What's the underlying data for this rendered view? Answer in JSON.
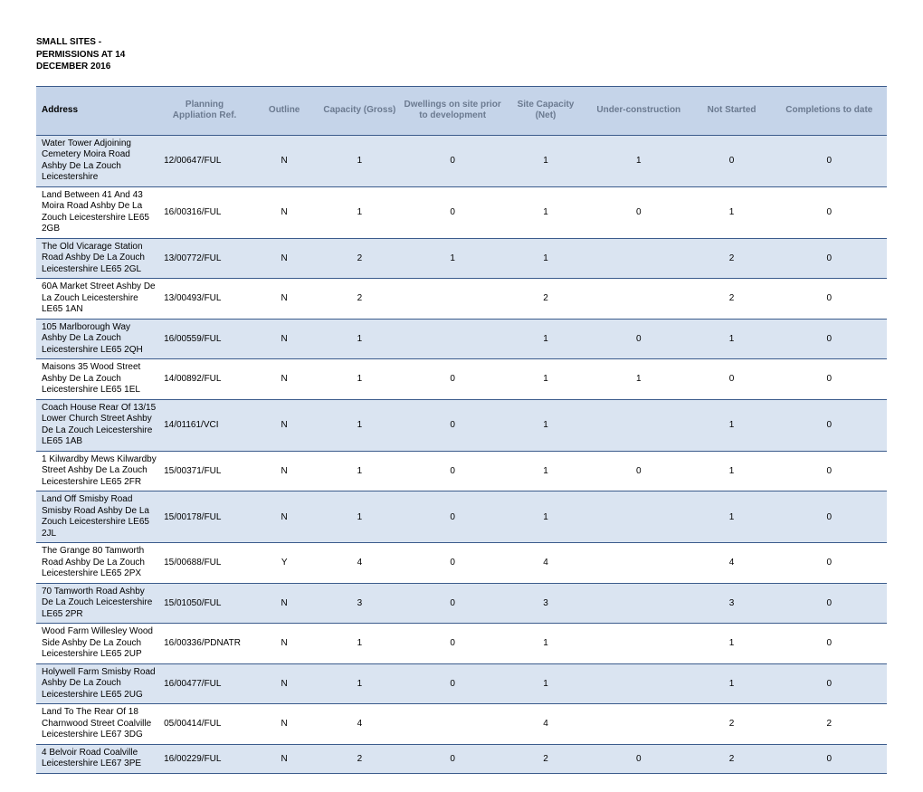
{
  "title_lines": [
    "SMALL SITES -",
    "PERMISSIONS AT 14",
    "DECEMBER 2016"
  ],
  "colors": {
    "header_bg": "#c5d4e9",
    "header_text": "#6b7a90",
    "row_odd_bg": "#dae4f1",
    "row_even_bg": "#ffffff",
    "border": "#3b5b8c"
  },
  "columns": [
    {
      "key": "address",
      "label": "Address"
    },
    {
      "key": "ref",
      "label": "Planning Appliation Ref."
    },
    {
      "key": "outline",
      "label": "Outline"
    },
    {
      "key": "gross",
      "label": "Capacity (Gross)"
    },
    {
      "key": "dwellings",
      "label": "Dwellings on site prior to development"
    },
    {
      "key": "net",
      "label": "Site Capacity (Net)"
    },
    {
      "key": "under",
      "label": "Under-construction"
    },
    {
      "key": "notstarted",
      "label": "Not Started"
    },
    {
      "key": "completions",
      "label": "Completions to date"
    }
  ],
  "rows": [
    {
      "address": "Water Tower Adjoining Cemetery Moira Road Ashby De La Zouch Leicestershire",
      "ref": "12/00647/FUL",
      "outline": "N",
      "gross": "1",
      "dwellings": "0",
      "net": "1",
      "under": "1",
      "notstarted": "0",
      "completions": "0"
    },
    {
      "address": "Land Between 41 And 43 Moira Road Ashby De La Zouch Leicestershire LE65 2GB",
      "ref": "16/00316/FUL",
      "outline": "N",
      "gross": "1",
      "dwellings": "0",
      "net": "1",
      "under": "0",
      "notstarted": "1",
      "completions": "0"
    },
    {
      "address": "The Old Vicarage Station Road Ashby De La Zouch Leicestershire LE65 2GL",
      "ref": "13/00772/FUL",
      "outline": "N",
      "gross": "2",
      "dwellings": "1",
      "net": "1",
      "under": "",
      "notstarted": "2",
      "completions": "0"
    },
    {
      "address": "60A Market Street Ashby De La Zouch Leicestershire LE65 1AN",
      "ref": "13/00493/FUL",
      "outline": "N",
      "gross": "2",
      "dwellings": "",
      "net": "2",
      "under": "",
      "notstarted": "2",
      "completions": "0"
    },
    {
      "address": "105 Marlborough Way Ashby De La Zouch Leicestershire LE65 2QH",
      "ref": "16/00559/FUL",
      "outline": "N",
      "gross": "1",
      "dwellings": "",
      "net": "1",
      "under": "0",
      "notstarted": "1",
      "completions": "0"
    },
    {
      "address": "Maisons 35 Wood Street Ashby De La Zouch Leicestershire LE65 1EL",
      "ref": "14/00892/FUL",
      "outline": "N",
      "gross": "1",
      "dwellings": "0",
      "net": "1",
      "under": "1",
      "notstarted": "0",
      "completions": "0"
    },
    {
      "address": "Coach House Rear Of 13/15 Lower Church Street Ashby De La Zouch Leicestershire LE65 1AB",
      "ref": "14/01161/VCI",
      "outline": "N",
      "gross": "1",
      "dwellings": "0",
      "net": "1",
      "under": "",
      "notstarted": "1",
      "completions": "0"
    },
    {
      "address": "1 Kilwardby Mews Kilwardby Street Ashby De La Zouch Leicestershire LE65 2FR",
      "ref": "15/00371/FUL",
      "outline": "N",
      "gross": "1",
      "dwellings": "0",
      "net": "1",
      "under": "0",
      "notstarted": "1",
      "completions": "0"
    },
    {
      "address": "Land Off Smisby Road Smisby Road Ashby De La Zouch Leicestershire LE65 2JL",
      "ref": "15/00178/FUL",
      "outline": "N",
      "gross": "1",
      "dwellings": "0",
      "net": "1",
      "under": "",
      "notstarted": "1",
      "completions": "0"
    },
    {
      "address": "The Grange 80 Tamworth Road Ashby De La Zouch Leicestershire LE65 2PX",
      "ref": "15/00688/FUL",
      "outline": "Y",
      "gross": "4",
      "dwellings": "0",
      "net": "4",
      "under": "",
      "notstarted": "4",
      "completions": "0"
    },
    {
      "address": "70 Tamworth Road Ashby De La Zouch Leicestershire LE65 2PR",
      "ref": "15/01050/FUL",
      "outline": "N",
      "gross": "3",
      "dwellings": "0",
      "net": "3",
      "under": "",
      "notstarted": "3",
      "completions": "0"
    },
    {
      "address": "Wood Farm Willesley Wood Side Ashby De La Zouch Leicestershire LE65 2UP",
      "ref": "16/00336/PDNATR",
      "outline": "N",
      "gross": "1",
      "dwellings": "0",
      "net": "1",
      "under": "",
      "notstarted": "1",
      "completions": "0"
    },
    {
      "address": "Holywell Farm Smisby Road Ashby De La Zouch Leicestershire LE65 2UG",
      "ref": "16/00477/FUL",
      "outline": "N",
      "gross": "1",
      "dwellings": "0",
      "net": "1",
      "under": "",
      "notstarted": "1",
      "completions": "0"
    },
    {
      "address": "Land To The Rear Of 18 Charnwood Street Coalville Leicestershire LE67 3DG",
      "ref": "05/00414/FUL",
      "outline": "N",
      "gross": "4",
      "dwellings": "",
      "net": "4",
      "under": "",
      "notstarted": "2",
      "completions": "2"
    },
    {
      "address": "4 Belvoir Road Coalville Leicestershire LE67 3PE",
      "ref": "16/00229/FUL",
      "outline": "N",
      "gross": "2",
      "dwellings": "0",
      "net": "2",
      "under": "0",
      "notstarted": "2",
      "completions": "0"
    }
  ]
}
